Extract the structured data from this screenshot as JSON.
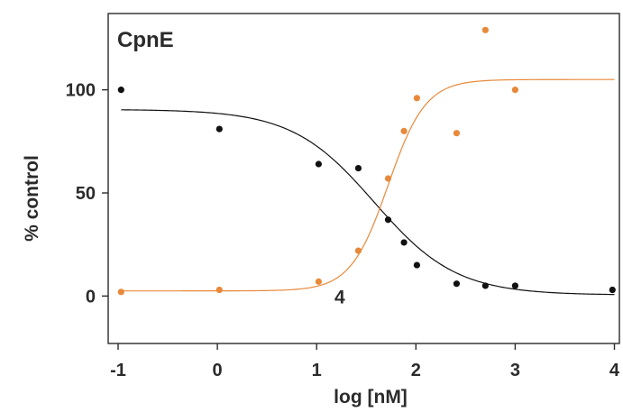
{
  "chart_data": {
    "type": "scatter",
    "title": "CpnE",
    "xlabel": "log [nM]",
    "ylabel": "% control",
    "xlim": [
      -1.1,
      4.05
    ],
    "ylim": [
      -23,
      137
    ],
    "xticks": [
      -1,
      0,
      1,
      2,
      3,
      4
    ],
    "xtick_labels": [
      "-1",
      "0",
      "1",
      "2",
      "3",
      "4"
    ],
    "yticks": [
      0,
      50,
      100
    ],
    "ytick_labels": [
      "0",
      "50",
      "100"
    ],
    "grid": false,
    "annotations": [
      {
        "text": "4",
        "x": 1.18,
        "y": 0
      }
    ],
    "series": [
      {
        "color": "#111111",
        "x": [
          -0.97,
          0.02,
          1.02,
          1.42,
          1.72,
          1.88,
          2.01,
          2.41,
          2.7,
          3.0,
          3.98
        ],
        "y": [
          100,
          81,
          64,
          62,
          37,
          26,
          15,
          6,
          5,
          5,
          3
        ],
        "fit": {
          "model": "four-parameter-logistic",
          "bottom": 0.5,
          "top": 90.5,
          "log_ec50": 1.58,
          "hill_slope": -1.05
        }
      },
      {
        "color": "#e8893a",
        "x": [
          -0.97,
          0.02,
          1.02,
          1.42,
          1.72,
          1.88,
          2.01,
          2.41,
          2.7,
          3.0
        ],
        "y": [
          2,
          3,
          7,
          22,
          57,
          80,
          96,
          79,
          129,
          100
        ],
        "fit": {
          "model": "four-parameter-logistic",
          "bottom": 2.5,
          "top": 105,
          "log_ec50": 1.72,
          "hill_slope": 2.3
        }
      }
    ]
  }
}
